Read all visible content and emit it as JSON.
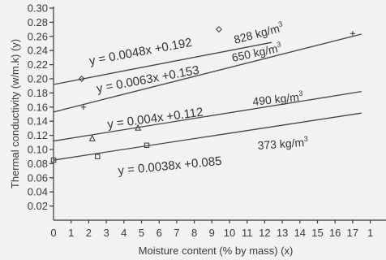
{
  "chart_data": {
    "type": "line",
    "xlabel": "Moisture content (% by mass) (x)",
    "ylabel": "Thermal conductivity (w/m.k) (y)",
    "xlim": [
      0,
      17.5
    ],
    "ylim": [
      0,
      0.3
    ],
    "xticks": [
      "0",
      "1",
      "2",
      "3",
      "4",
      "5",
      "6",
      "7",
      "8",
      "9",
      "10",
      "11",
      "12",
      "13",
      "14",
      "15",
      "16",
      "17",
      "1"
    ],
    "yticks": [
      "0.02",
      "0.04",
      "0.06",
      "0.08",
      "0.10",
      "0.12",
      "0.14",
      "0.16",
      "0.18",
      "0.20",
      "0.22",
      "0.24",
      "0.26",
      "0.28",
      "0.30"
    ],
    "grid": false,
    "series": [
      {
        "name": "828 kg/m3",
        "equation": "y = 0.0048x +0.192",
        "label_main": "828 kg/m",
        "label_sup": "3",
        "marker": "diamond",
        "line_x": [
          0,
          12.4
        ],
        "points": [
          {
            "x": 1.6,
            "y": 0.2
          },
          {
            "x": 9.4,
            "y": 0.27
          }
        ]
      },
      {
        "name": "650 kg/m3",
        "equation": "y = 0.0063x +0.153",
        "label_main": "650 kg/m",
        "label_sup": "3",
        "marker": "plus",
        "line_x": [
          0,
          17.5
        ],
        "points": [
          {
            "x": 1.7,
            "y": 0.16
          },
          {
            "x": 17.0,
            "y": 0.264
          }
        ]
      },
      {
        "name": "490 kg/m3",
        "equation": "y = 0.004x +0.112",
        "label_main": "490 kg/m",
        "label_sup": "3",
        "marker": "triangle",
        "line_x": [
          0,
          17.5
        ],
        "points": [
          {
            "x": 2.2,
            "y": 0.116
          },
          {
            "x": 4.8,
            "y": 0.131
          }
        ]
      },
      {
        "name": "373 kg/m3",
        "equation": "y = 0.0038x +0.085",
        "label_main": "373 kg/m",
        "label_sup": "3",
        "marker": "square",
        "line_x": [
          0,
          17.5
        ],
        "points": [
          {
            "x": 0,
            "y": 0.085
          },
          {
            "x": 2.5,
            "y": 0.09
          },
          {
            "x": 5.3,
            "y": 0.106
          }
        ]
      }
    ]
  }
}
